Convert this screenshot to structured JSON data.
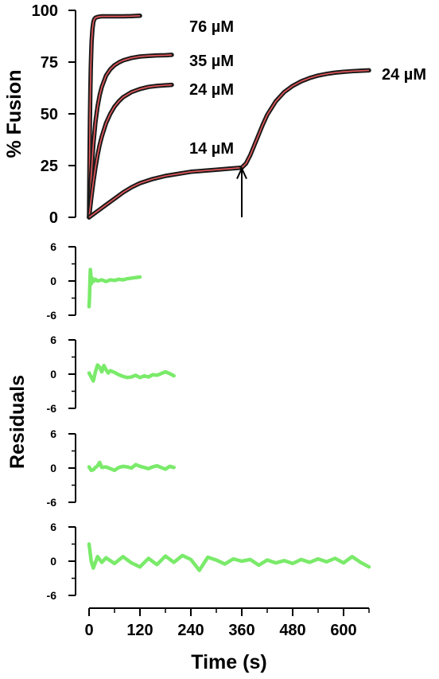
{
  "chart_data": [
    {
      "type": "line",
      "ylabel": "% Fusion",
      "ylim": [
        0,
        100
      ],
      "xlim": [
        0,
        660
      ],
      "y_ticks": [
        "0",
        "25",
        "50",
        "75",
        "100"
      ],
      "grid": false,
      "colors": {
        "data": "#1a1a1a",
        "fit": "#e8585c",
        "arrow": "#000000"
      },
      "series": [
        {
          "name": "76 µM",
          "x": [
            0,
            1,
            2,
            3,
            4,
            5,
            6,
            8,
            10,
            12,
            15,
            20,
            25,
            30,
            40,
            50,
            60,
            80,
            100,
            120
          ],
          "y": [
            0,
            27,
            47,
            61,
            72,
            79,
            85,
            91,
            94.2,
            95.6,
            96.4,
            96.8,
            97,
            97.1,
            97.1,
            97.1,
            97.1,
            97.1,
            97.2,
            97.4
          ]
        },
        {
          "name": "35 µM",
          "x": [
            0,
            5,
            10,
            15,
            20,
            25,
            30,
            40,
            50,
            60,
            70,
            80,
            100,
            120,
            140,
            160,
            180,
            195
          ],
          "y": [
            0,
            20,
            35,
            46,
            53.5,
            59,
            63,
            68.5,
            71.5,
            73.5,
            74.8,
            75.8,
            77,
            77.7,
            78,
            78.2,
            78.3,
            78.5
          ]
        },
        {
          "name": "24 µM",
          "x": [
            0,
            5,
            10,
            15,
            20,
            25,
            30,
            40,
            50,
            60,
            70,
            80,
            100,
            120,
            140,
            160,
            180,
            195
          ],
          "y": [
            0,
            9,
            17,
            24,
            30,
            35,
            39,
            45.5,
            50,
            53.5,
            56,
            58,
            60.5,
            62,
            63,
            63.5,
            63.8,
            64
          ]
        },
        {
          "name": "14 µM",
          "x": [
            0,
            10,
            20,
            30,
            40,
            60,
            80,
            100,
            120,
            150,
            180,
            210,
            240,
            270,
            300,
            330,
            360
          ],
          "y": [
            0,
            1.5,
            3,
            4.5,
            6,
            9,
            12,
            14.5,
            16.5,
            18.5,
            20,
            21,
            22,
            22.5,
            23,
            23.5,
            24
          ]
        },
        {
          "name": "24 µM",
          "x": [
            360,
            370,
            380,
            390,
            400,
            410,
            420,
            440,
            460,
            480,
            500,
            520,
            540,
            560,
            580,
            600,
            620,
            640,
            660
          ],
          "y": [
            24,
            26,
            30,
            35,
            40,
            45,
            49.5,
            56,
            60.5,
            63.5,
            65.7,
            67.3,
            68.5,
            69.3,
            69.9,
            70.3,
            70.6,
            70.8,
            71
          ]
        }
      ],
      "annotations": {
        "label_76": "76 µM",
        "label_35": "35 µM",
        "label_24a": "24 µM",
        "label_14": "14 µM",
        "label_24b": "24 µM"
      },
      "arrow": {
        "x": 360,
        "y_tail": 0,
        "y_head": 24
      }
    },
    {
      "type": "line",
      "ylabel": "Residuals",
      "xlabel": "Time (s)",
      "xlim": [
        0,
        660
      ],
      "ylim": [
        -6,
        6
      ],
      "x_ticks": [
        "0",
        "120",
        "240",
        "360",
        "480",
        "600"
      ],
      "y_ticks": [
        "6",
        "0",
        "-6"
      ],
      "color": "#7aea6a",
      "panels": [
        {
          "x": [
            0,
            1,
            2,
            3,
            4,
            5,
            6,
            8,
            10,
            15,
            20,
            30,
            40,
            50,
            60,
            70,
            80,
            90,
            100,
            110,
            120
          ],
          "y": [
            -4.5,
            -3,
            0,
            2,
            1.2,
            -0.5,
            0.6,
            0.4,
            -0.1,
            0.3,
            0,
            0.2,
            -0.1,
            0.2,
            0.1,
            0.3,
            0.2,
            0.4,
            0.5,
            0.6,
            0.7
          ]
        },
        {
          "x": [
            0,
            5,
            10,
            15,
            20,
            25,
            30,
            35,
            40,
            45,
            50,
            60,
            70,
            80,
            90,
            100,
            110,
            120,
            130,
            140,
            150,
            160,
            170,
            180,
            190,
            200
          ],
          "y": [
            0.2,
            -0.5,
            -1.2,
            0.4,
            1.6,
            1.2,
            0.4,
            1.5,
            0.8,
            0.2,
            0.6,
            0.3,
            -0.1,
            -0.4,
            -0.6,
            -0.5,
            -0.2,
            -0.6,
            -0.3,
            -0.5,
            -0.1,
            -0.2,
            0.1,
            0.4,
            0.1,
            -0.3
          ]
        },
        {
          "x": [
            0,
            5,
            10,
            15,
            20,
            25,
            30,
            40,
            50,
            60,
            70,
            80,
            90,
            100,
            110,
            120,
            130,
            140,
            150,
            160,
            170,
            180,
            190,
            200
          ],
          "y": [
            0.2,
            -0.4,
            -0.3,
            0.1,
            0.4,
            1,
            0.1,
            0.2,
            -0.1,
            -0.4,
            0.1,
            0.3,
            0.2,
            0,
            0.6,
            0.3,
            0.1,
            -0.1,
            0.2,
            0.4,
            0.1,
            -0.2,
            0.3,
            0.1
          ]
        },
        {
          "x": [
            0,
            5,
            10,
            20,
            30,
            40,
            60,
            80,
            100,
            120,
            140,
            160,
            180,
            200,
            220,
            240,
            260,
            280,
            300,
            320,
            340,
            360,
            380,
            400,
            420,
            440,
            460,
            480,
            500,
            520,
            540,
            560,
            580,
            600,
            620,
            640,
            660
          ],
          "y": [
            3,
            0,
            -1.2,
            0.8,
            -0.2,
            0.6,
            -0.4,
            0.8,
            -0.3,
            -1,
            0.5,
            -0.6,
            0.9,
            -0.2,
            1,
            0.3,
            -1.6,
            0.7,
            0.2,
            -0.5,
            0.4,
            0,
            0.3,
            -0.7,
            0.2,
            -0.3,
            0.1,
            -0.4,
            0.3,
            -0.2,
            0.4,
            -0.1,
            0.5,
            -0.3,
            0.8,
            -0.2,
            -1
          ]
        }
      ]
    }
  ]
}
